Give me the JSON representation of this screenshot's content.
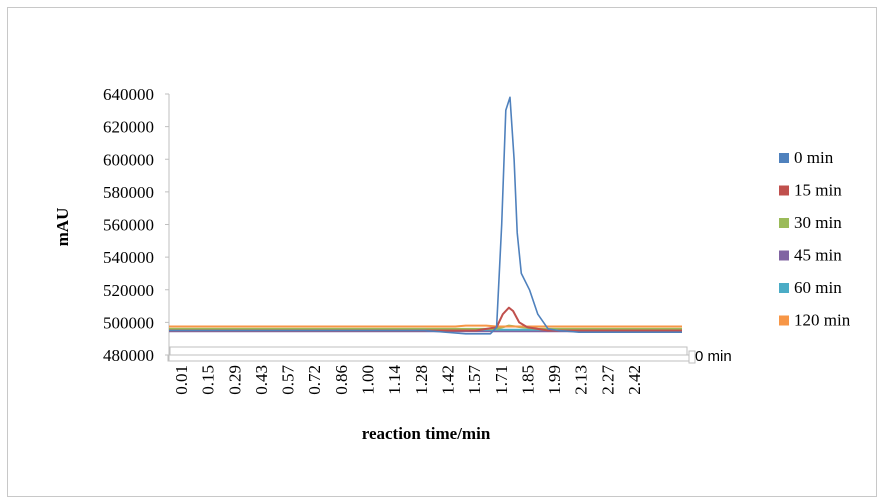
{
  "chart_data": {
    "type": "line",
    "ylabel": "mAU",
    "xlabel": "reaction time/min",
    "ylim": [
      480000,
      640000
    ],
    "yticks": [
      "640000",
      "620000",
      "600000",
      "580000",
      "560000",
      "540000",
      "520000",
      "500000",
      "480000"
    ],
    "xlim": [
      0.01,
      2.5
    ],
    "categories": [
      "0.01",
      "0.15",
      "0.29",
      "0.43",
      "0.57",
      "0.72",
      "0.86",
      "1.00",
      "1.14",
      "1.28",
      "1.42",
      "1.57",
      "1.71",
      "1.85",
      "1.99",
      "2.13",
      "2.27",
      "2.42"
    ],
    "depth_axis_label": "0 min",
    "legend_position": "right",
    "grid": false,
    "series": [
      {
        "name": "0 min",
        "color": "#4f81bd",
        "x": [
          0.01,
          1.25,
          1.45,
          1.57,
          1.6,
          1.625,
          1.645,
          1.665,
          1.685,
          1.7,
          1.72,
          1.76,
          1.8,
          1.85,
          1.9,
          2.0,
          2.5
        ],
        "y": [
          495000,
          495000,
          493000,
          493000,
          497000,
          560000,
          630000,
          638000,
          600000,
          555000,
          530000,
          520000,
          505000,
          496000,
          495000,
          494000,
          494000
        ]
      },
      {
        "name": "15 min",
        "color": "#c0504d",
        "x": [
          0.01,
          1.5,
          1.6,
          1.63,
          1.66,
          1.68,
          1.71,
          1.75,
          1.85,
          2.5
        ],
        "y": [
          495000,
          495000,
          497000,
          505000,
          509000,
          507000,
          500000,
          497000,
          495000,
          495000
        ]
      },
      {
        "name": "30 min",
        "color": "#9bbb59",
        "x": [
          0.01,
          1.6,
          1.66,
          1.72,
          1.8,
          2.5
        ],
        "y": [
          496000,
          496000,
          498000,
          497000,
          496000,
          496000
        ]
      },
      {
        "name": "45 min",
        "color": "#8064a2",
        "x": [
          0.01,
          2.5
        ],
        "y": [
          494500,
          494500
        ]
      },
      {
        "name": "60 min",
        "color": "#4bacc6",
        "x": [
          0.01,
          2.5
        ],
        "y": [
          495500,
          495500
        ]
      },
      {
        "name": "120 min",
        "color": "#f79646",
        "x": [
          0.01,
          1.4,
          1.45,
          1.55,
          1.6,
          2.5
        ],
        "y": [
          497500,
          497500,
          498000,
          498000,
          497500,
          497500
        ]
      }
    ]
  }
}
